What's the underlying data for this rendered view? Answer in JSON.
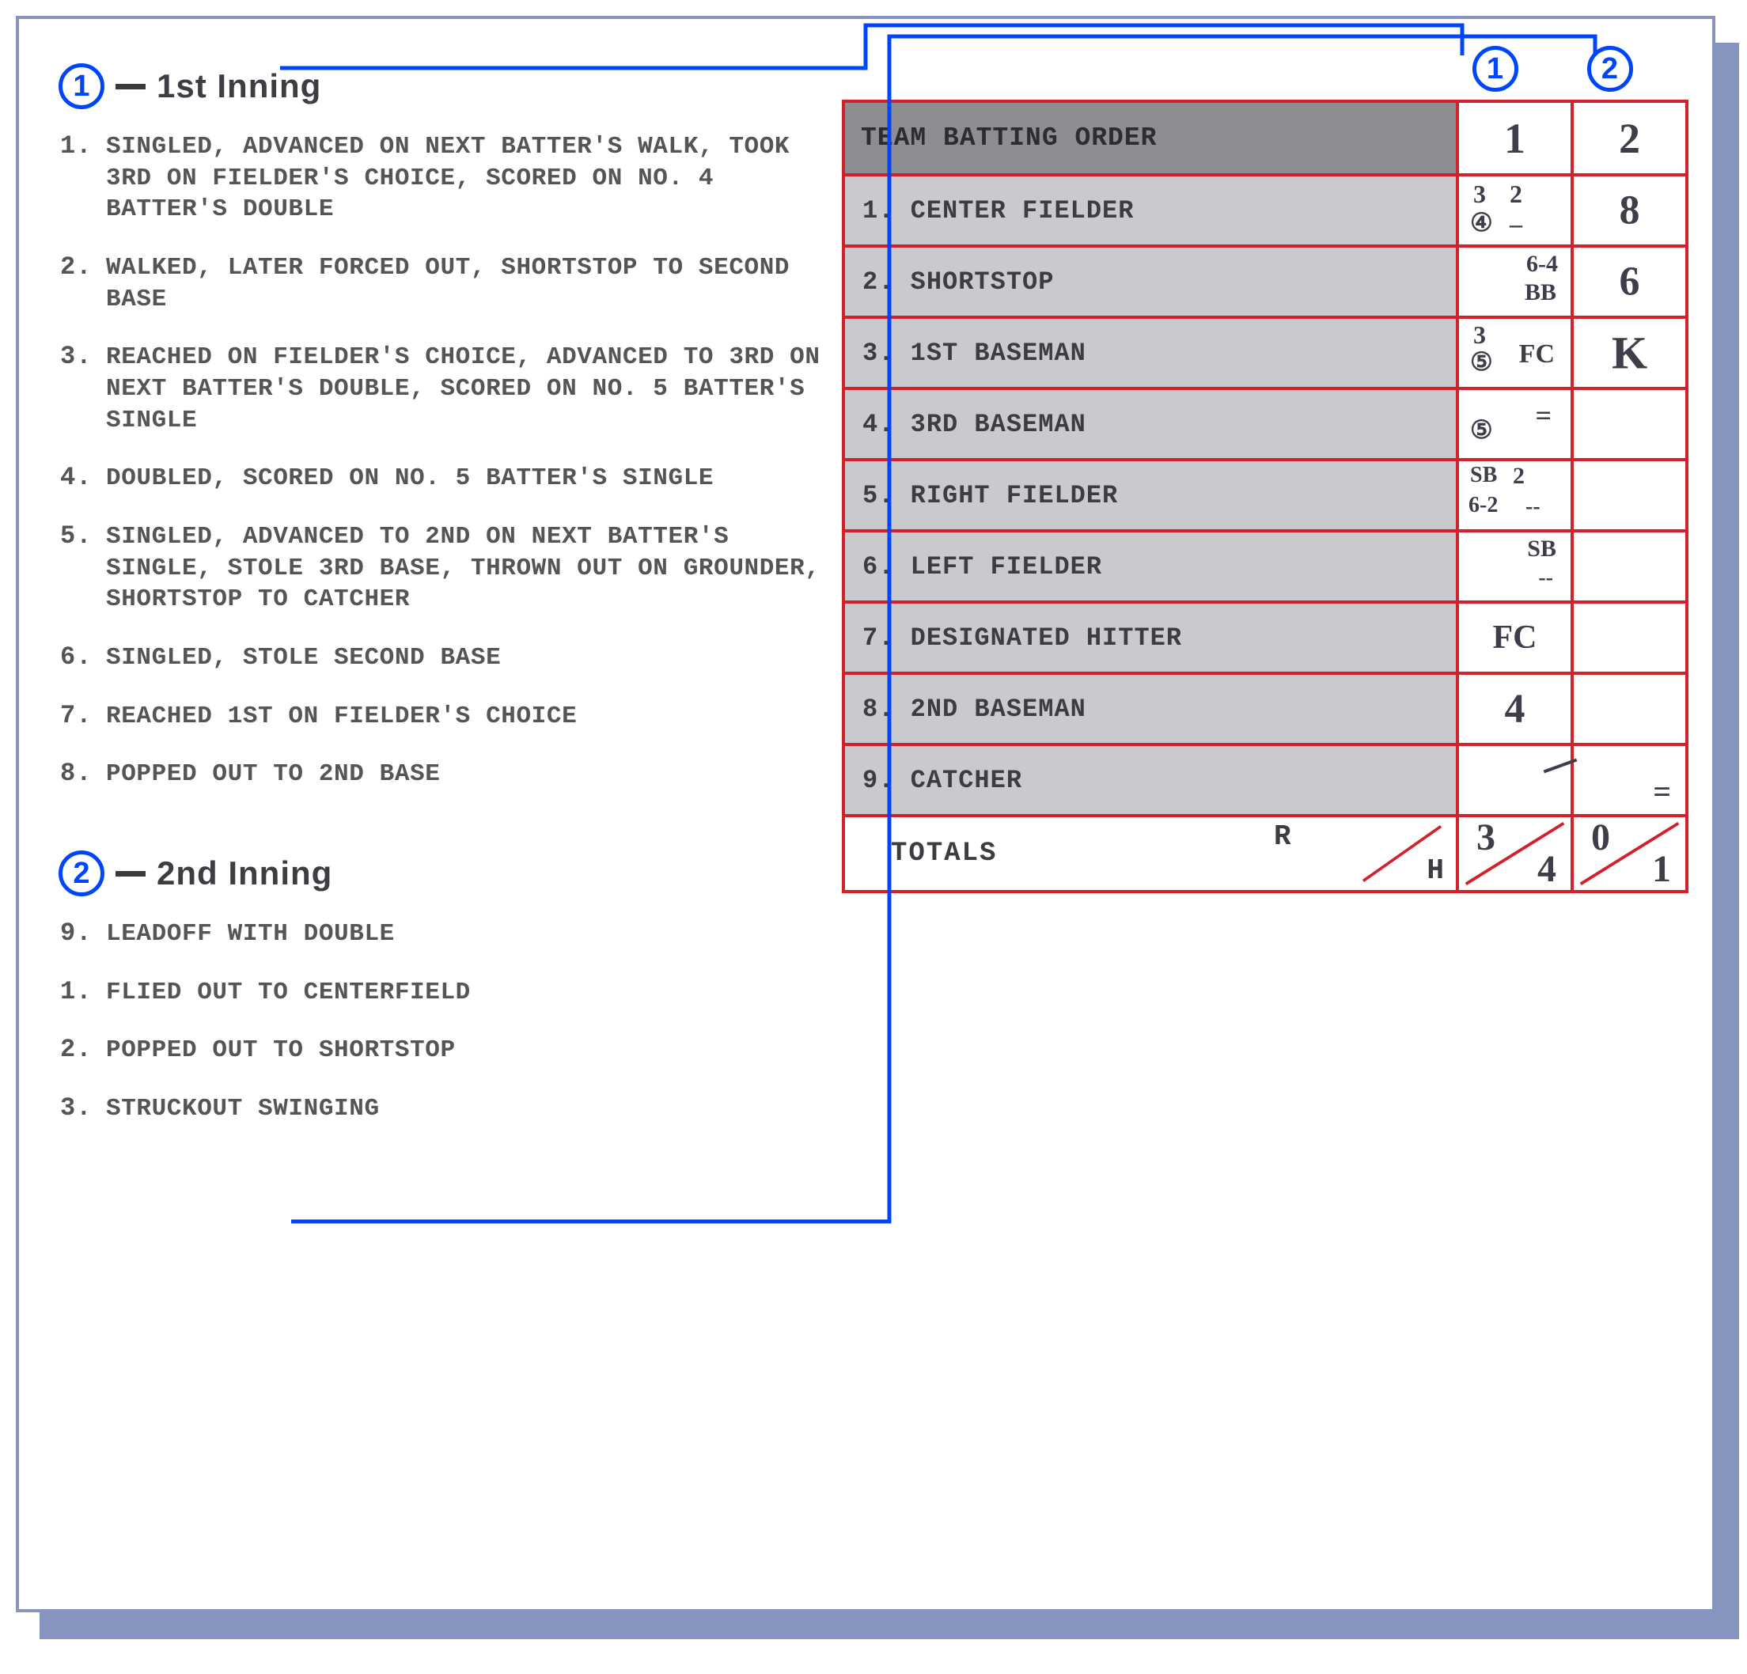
{
  "colors": {
    "card_border": "#8894c0",
    "shadow": "#8894c0",
    "circle": "#0045f7",
    "connector": "#0045f7",
    "table_border": "#d2212a",
    "header_bg": "#8d8d92",
    "row_bg": "#cacace",
    "body_text": "#555555",
    "title_text": "#3d3d44",
    "hand_text": "#3f3d4a"
  },
  "innings": [
    {
      "marker": "1",
      "title": "1st Inning",
      "plays": [
        {
          "n": "1.",
          "t": "SINGLED, ADVANCED ON NEXT BATTER'S WALK, TOOK 3RD ON FIELDER'S CHOICE, SCORED ON NO. 4 BATTER'S DOUBLE"
        },
        {
          "n": "2.",
          "t": "WALKED, LATER FORCED OUT, SHORTSTOP TO SECOND BASE"
        },
        {
          "n": "3.",
          "t": "REACHED ON FIELDER'S CHOICE, ADVANCED TO 3RD ON NEXT BATTER'S DOUBLE, SCORED ON NO. 5 BATTER'S SINGLE"
        },
        {
          "n": "4.",
          "t": "DOUBLED, SCORED ON NO. 5 BATTER'S SINGLE"
        },
        {
          "n": "5.",
          "t": "SINGLED, ADVANCED TO 2ND ON NEXT BATTER'S SINGLE, STOLE 3RD BASE, THROWN OUT ON GROUNDER, SHORTSTOP TO CATCHER"
        },
        {
          "n": "6.",
          "t": "SINGLED, STOLE SECOND BASE"
        },
        {
          "n": "7.",
          "t": "REACHED 1ST ON FIELDER'S CHOICE"
        },
        {
          "n": "8.",
          "t": "POPPED OUT TO 2ND BASE"
        }
      ]
    },
    {
      "marker": "2",
      "title": "2nd Inning",
      "plays": [
        {
          "n": "9.",
          "t": "LEADOFF WITH DOUBLE"
        },
        {
          "n": "1.",
          "t": "FLIED OUT TO CENTERFIELD"
        },
        {
          "n": "2.",
          "t": "POPPED OUT TO SHORTSTOP"
        },
        {
          "n": "3.",
          "t": "STRUCKOUT SWINGING"
        }
      ]
    }
  ],
  "col_markers": [
    "1",
    "2"
  ],
  "table": {
    "header": "TEAM BATTING ORDER",
    "inning_cols": [
      "1",
      "2"
    ],
    "rows": [
      {
        "label": "1.  CENTER FIELDER"
      },
      {
        "label": "2.  SHORTSTOP"
      },
      {
        "label": "3.  1ST BASEMAN"
      },
      {
        "label": "4.  3RD BASEMAN"
      },
      {
        "label": "5.  RIGHT FIELDER"
      },
      {
        "label": "6.  LEFT FIELDER"
      },
      {
        "label": "7.  DESIGNATED HITTER"
      },
      {
        "label": "8.  2ND BASEMAN"
      },
      {
        "label": "9.  CATCHER"
      }
    ],
    "totals_label": "TOTALS",
    "rh": {
      "r": "R",
      "h": "H"
    },
    "totals": [
      {
        "r": "3",
        "h": "4"
      },
      {
        "r": "0",
        "h": "1"
      }
    ]
  },
  "scorecells": {
    "r0c0": [
      {
        "txt": "3",
        "cls": "sc",
        "style": "top:6px;left:18px;font-size:32px;"
      },
      {
        "txt": "2",
        "cls": "sc",
        "style": "top:6px;left:64px;font-size:32px;"
      },
      {
        "txt": "④",
        "cls": "sc",
        "style": "top:42px;left:14px;font-size:32px;"
      },
      {
        "txt": "–",
        "cls": "sc",
        "style": "top:44px;left:64px;font-size:32px;"
      }
    ],
    "r0c1": [
      {
        "txt": "8",
        "cls": "center-big hand"
      }
    ],
    "r1c0": [
      {
        "txt": "6-4",
        "cls": "sc",
        "style": "top:6px;right:16px;font-size:30px;"
      },
      {
        "txt": "BB",
        "cls": "sc",
        "style": "top:42px;right:18px;font-size:30px;"
      }
    ],
    "r1c1": [
      {
        "txt": "6",
        "cls": "center-big hand"
      }
    ],
    "r2c0": [
      {
        "txt": "3",
        "cls": "sc",
        "style": "top:4px;left:18px;font-size:32px;"
      },
      {
        "txt": "⑤",
        "cls": "sc",
        "style": "top:38px;left:14px;font-size:32px;"
      },
      {
        "txt": "FC",
        "cls": "sc",
        "style": "top:28px;right:20px;font-size:34px;"
      }
    ],
    "r2c1": [
      {
        "txt": "K",
        "cls": "center-big hand",
        "style": "font-size:58px;"
      }
    ],
    "r3c0": [
      {
        "txt": "⑤",
        "cls": "sc",
        "style": "top:34px;left:14px;font-size:32px;"
      },
      {
        "txt": "=",
        "cls": "sc",
        "style": "top:14px;right:24px;font-size:36px;"
      }
    ],
    "r3c1": [],
    "r4c0": [
      {
        "txt": "SB",
        "cls": "sc",
        "style": "top:4px;left:14px;font-size:28px;"
      },
      {
        "txt": "2",
        "cls": "sc",
        "style": "top:4px;left:68px;font-size:30px;"
      },
      {
        "txt": "6-2",
        "cls": "sc",
        "style": "top:42px;left:12px;font-size:28px;"
      },
      {
        "txt": "--",
        "cls": "sc",
        "style": "top:44px;left:84px;font-size:28px;"
      }
    ],
    "r4c1": [],
    "r5c0": [
      {
        "txt": "SB",
        "cls": "sc",
        "style": "top:6px;right:18px;font-size:30px;"
      },
      {
        "txt": "--",
        "cls": "sc",
        "style": "top:44px;right:22px;font-size:28px;"
      }
    ],
    "r5c1": [],
    "r6c0": [
      {
        "txt": "FC",
        "cls": "center-big hand",
        "style": "font-size:42px;"
      }
    ],
    "r6c1": [],
    "r7c0": [
      {
        "txt": "4",
        "cls": "center-big hand"
      }
    ],
    "r7c1": [],
    "r8c0": [],
    "r8c1": [
      {
        "txt": "=",
        "cls": "sc hand",
        "style": "bottom:8px;right:18px;font-size:40px;"
      }
    ]
  }
}
